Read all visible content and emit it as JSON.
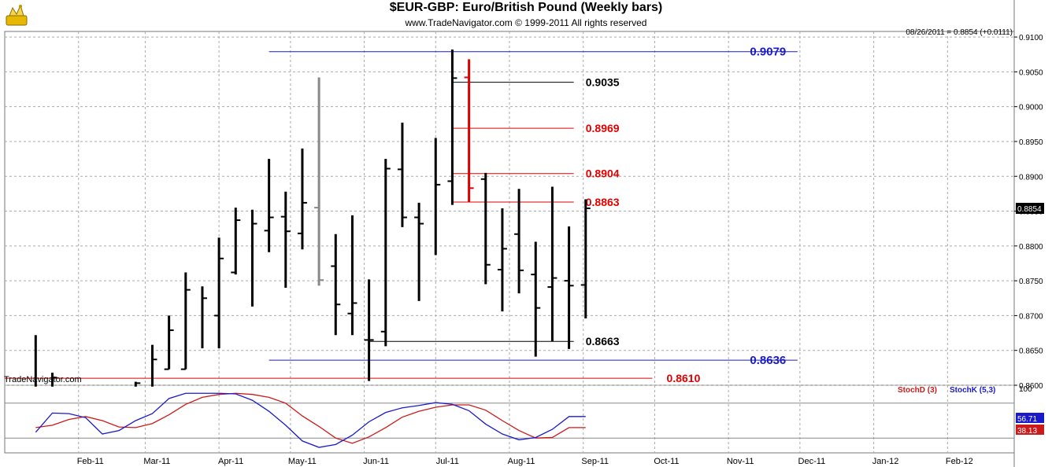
{
  "header": {
    "title": "$EUR-GBP:  Euro/British Pound  (Weekly bars)",
    "copyright": "www.TradeNavigator.com © 1999-2011 All rights reserved",
    "last_value": "08/26/2011 = 0.8854 (+0.0111)"
  },
  "watermark": "TradeNavigator.com",
  "colors": {
    "bar_black": "#000000",
    "bar_gray": "#888888",
    "bar_red": "#e00000",
    "fib_red": "#e00000",
    "level_blue": "#1a1acc",
    "stochK": "#1a1acc",
    "stochD": "#cc1a1a",
    "grid": "#aaaaaa",
    "last_price_bg": "#000000"
  },
  "chart_data": {
    "type": "ohlc",
    "title": "$EUR-GBP:  Euro/British Pound  (Weekly bars)",
    "x_tick_labels": [
      "Feb-11",
      "Mar-11",
      "Apr-11",
      "May-11",
      "Jun-11",
      "Jul-11",
      "Aug-11",
      "Sep-11",
      "Oct-11",
      "Nov-11",
      "Dec-11",
      "Jan-12",
      "Feb-12"
    ],
    "x_tick_dates": [
      "2011-02-01",
      "2011-03-01",
      "2011-04-01",
      "2011-05-01",
      "2011-06-01",
      "2011-07-01",
      "2011-08-01",
      "2011-09-01",
      "2011-10-01",
      "2011-11-01",
      "2011-12-01",
      "2012-01-01",
      "2012-02-01"
    ],
    "x_range": [
      "2011-01-01",
      "2012-02-29"
    ],
    "ylim": [
      0.86,
      0.9108
    ],
    "y_tick_labels": [
      "0.8600",
      "0.8650",
      "0.8700",
      "0.8750",
      "0.8800",
      "0.8850",
      "0.8900",
      "0.8950",
      "0.9000",
      "0.9050",
      "0.9100"
    ],
    "grid": true,
    "last_price_label": "0.8854",
    "bars": [
      {
        "date": "2011-01-14",
        "open": null,
        "high": 0.8672,
        "low": 0.8598,
        "close": null,
        "color": "black"
      },
      {
        "date": "2011-01-21",
        "open": null,
        "high": 0.8618,
        "low": 0.8598,
        "close": 0.8611,
        "color": "black"
      },
      {
        "date": "2011-02-25",
        "open": null,
        "high": 0.8605,
        "low": 0.8598,
        "close": 0.8603,
        "color": "black"
      },
      {
        "date": "2011-03-04",
        "open": null,
        "high": 0.8658,
        "low": 0.8598,
        "close": 0.8637,
        "color": "black"
      },
      {
        "date": "2011-03-11",
        "open": 0.8623,
        "high": 0.87,
        "low": 0.8623,
        "close": 0.8679,
        "color": "black"
      },
      {
        "date": "2011-03-18",
        "open": 0.8623,
        "high": 0.8762,
        "low": 0.8623,
        "close": 0.8737,
        "color": "black"
      },
      {
        "date": "2011-03-25",
        "open": null,
        "high": 0.8742,
        "low": 0.8653,
        "close": 0.8725,
        "color": "black"
      },
      {
        "date": "2011-04-01",
        "open": 0.87,
        "high": 0.8812,
        "low": 0.8653,
        "close": 0.8782,
        "color": "black"
      },
      {
        "date": "2011-04-08",
        "open": 0.8762,
        "high": 0.8855,
        "low": 0.8759,
        "close": 0.8837,
        "color": "black"
      },
      {
        "date": "2011-04-15",
        "open": null,
        "high": 0.8852,
        "low": 0.8713,
        "close": 0.8832,
        "color": "black"
      },
      {
        "date": "2011-04-22",
        "open": 0.8822,
        "high": 0.8925,
        "low": 0.8791,
        "close": 0.8841,
        "color": "black"
      },
      {
        "date": "2011-04-29",
        "open": 0.8842,
        "high": 0.8878,
        "low": 0.874,
        "close": 0.8821,
        "color": "black"
      },
      {
        "date": "2011-05-06",
        "open": 0.8818,
        "high": 0.894,
        "low": 0.8795,
        "close": 0.8862,
        "color": "black"
      },
      {
        "date": "2011-05-13",
        "open": 0.8855,
        "high": 0.9042,
        "low": 0.8743,
        "close": 0.8751,
        "color": "gray"
      },
      {
        "date": "2011-05-20",
        "open": 0.8771,
        "high": 0.8817,
        "low": 0.8672,
        "close": 0.8716,
        "color": "black"
      },
      {
        "date": "2011-05-27",
        "open": 0.8703,
        "high": 0.8844,
        "low": 0.8672,
        "close": 0.8718,
        "color": "black"
      },
      {
        "date": "2011-06-03",
        "open": 0.8665,
        "high": 0.8752,
        "low": 0.8606,
        "close": 0.8665,
        "color": "black"
      },
      {
        "date": "2011-06-10",
        "open": 0.8677,
        "high": 0.8925,
        "low": 0.8656,
        "close": 0.8911,
        "color": "black"
      },
      {
        "date": "2011-06-17",
        "open": 0.891,
        "high": 0.8977,
        "low": 0.8827,
        "close": 0.8841,
        "color": "black"
      },
      {
        "date": "2011-06-24",
        "open": 0.8841,
        "high": 0.8862,
        "low": 0.8721,
        "close": 0.8832,
        "color": "black"
      },
      {
        "date": "2011-07-01",
        "open": null,
        "high": 0.8955,
        "low": 0.8787,
        "close": 0.8888,
        "color": "black"
      },
      {
        "date": "2011-07-08",
        "open": 0.8893,
        "high": 0.9082,
        "low": 0.8859,
        "close": 0.9041,
        "color": "black"
      },
      {
        "date": "2011-07-15",
        "open": 0.9042,
        "high": 0.9068,
        "low": 0.8863,
        "close": 0.8883,
        "color": "red"
      },
      {
        "date": "2011-07-22",
        "open": 0.8896,
        "high": 0.8905,
        "low": 0.8745,
        "close": 0.8773,
        "color": "black"
      },
      {
        "date": "2011-07-29",
        "open": 0.8766,
        "high": 0.8854,
        "low": 0.8706,
        "close": 0.8796,
        "color": "black"
      },
      {
        "date": "2011-08-05",
        "open": 0.8817,
        "high": 0.8882,
        "low": 0.8732,
        "close": 0.8765,
        "color": "black"
      },
      {
        "date": "2011-08-12",
        "open": 0.8759,
        "high": 0.8806,
        "low": 0.8641,
        "close": 0.8711,
        "color": "black"
      },
      {
        "date": "2011-08-19",
        "open": 0.8741,
        "high": 0.8885,
        "low": 0.8663,
        "close": 0.8754,
        "color": "black"
      },
      {
        "date": "2011-08-26",
        "open": 0.875,
        "high": 0.8828,
        "low": 0.8652,
        "close": 0.8743,
        "color": "black"
      },
      {
        "date": "2011-09-02",
        "open": 0.8744,
        "high": 0.8867,
        "low": 0.8696,
        "close": 0.8854,
        "color": "black"
      }
    ],
    "levels": [
      {
        "value": 0.9079,
        "label": "0.9079",
        "color": "blue",
        "from": "2011-04-22",
        "to": "2011-11-30",
        "label_at": "2011-11-10"
      },
      {
        "value": 0.9035,
        "label": "0.9035",
        "color": "black",
        "from": "2011-07-08",
        "to": "2011-08-28",
        "label_at": "2011-09-02"
      },
      {
        "value": 0.8969,
        "label": "0.8969",
        "color": "red",
        "from": "2011-07-08",
        "to": "2011-08-28",
        "label_at": "2011-09-02"
      },
      {
        "value": 0.8904,
        "label": "0.8904",
        "color": "red",
        "from": "2011-07-08",
        "to": "2011-08-28",
        "label_at": "2011-09-02"
      },
      {
        "value": 0.8863,
        "label": "0.8863",
        "color": "red",
        "from": "2011-07-08",
        "to": "2011-08-28",
        "label_at": "2011-09-02"
      },
      {
        "value": 0.8663,
        "label": "0.8663",
        "color": "black",
        "from": "2011-06-03",
        "to": "2011-08-28",
        "label_at": "2011-09-02"
      },
      {
        "value": 0.8636,
        "label": "0.8636",
        "color": "blue",
        "from": "2011-04-22",
        "to": "2011-11-30",
        "label_at": "2011-11-10"
      },
      {
        "value": 0.861,
        "label": "0.8610",
        "color": "red",
        "from": "2011-01-01",
        "to": "2011-09-30",
        "label_at": "2011-10-06"
      }
    ],
    "stochastic": {
      "ylim": [
        0,
        100
      ],
      "top_label": "100",
      "ref_lines": [
        80,
        20
      ],
      "legend": [
        {
          "name": "StochD (3)",
          "color": "red"
        },
        {
          "name": "StochK (5,3)",
          "color": "blue"
        }
      ],
      "k_last": "56.71",
      "d_last": "38.13",
      "dates": [
        "2011-01-14",
        "2011-01-21",
        "2011-01-28",
        "2011-02-04",
        "2011-02-11",
        "2011-02-18",
        "2011-02-25",
        "2011-03-04",
        "2011-03-11",
        "2011-03-18",
        "2011-03-25",
        "2011-04-01",
        "2011-04-08",
        "2011-04-15",
        "2011-04-22",
        "2011-04-29",
        "2011-05-06",
        "2011-05-13",
        "2011-05-20",
        "2011-05-27",
        "2011-06-03",
        "2011-06-10",
        "2011-06-17",
        "2011-06-24",
        "2011-07-01",
        "2011-07-08",
        "2011-07-15",
        "2011-07-22",
        "2011-07-29",
        "2011-08-05",
        "2011-08-12",
        "2011-08-19",
        "2011-08-26",
        "2011-09-02"
      ],
      "k": [
        30,
        63,
        62,
        55,
        27,
        33,
        50,
        62,
        88,
        97,
        97,
        97,
        96,
        85,
        66,
        42,
        15,
        4,
        9,
        25,
        48,
        64,
        72,
        76,
        81,
        78,
        67,
        44,
        27,
        17,
        21,
        35,
        57,
        57
      ],
      "d": [
        38,
        42,
        52,
        57,
        50,
        39,
        38,
        45,
        60,
        78,
        90,
        95,
        97,
        95,
        90,
        80,
        58,
        40,
        20,
        11,
        22,
        38,
        56,
        66,
        73,
        77,
        77,
        68,
        50,
        33,
        20,
        21,
        38,
        38
      ]
    }
  }
}
